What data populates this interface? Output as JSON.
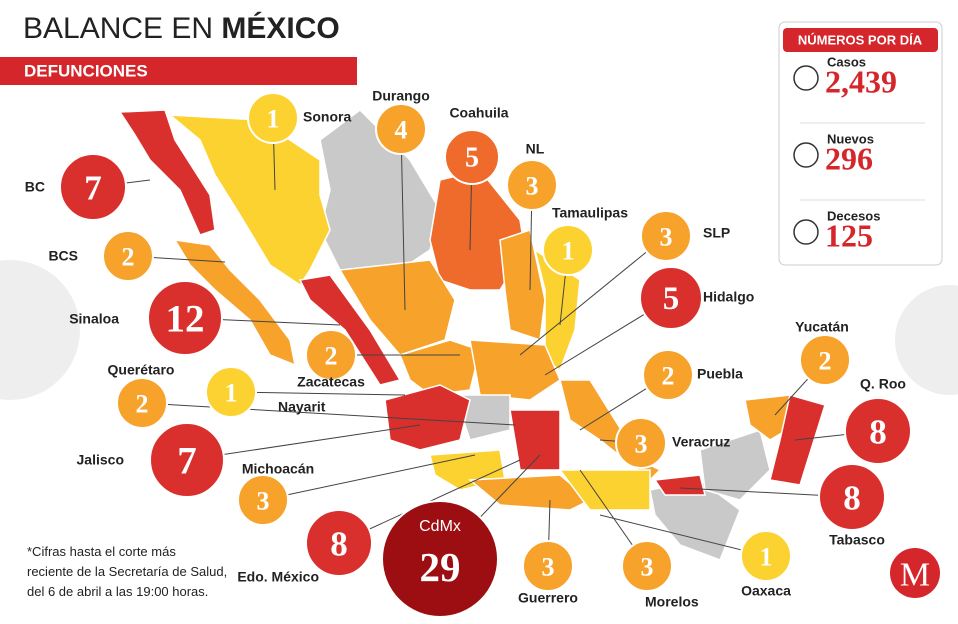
{
  "header": {
    "title_light": "BALANCE EN",
    "title_bold": "MÉXICO",
    "subtitle": "DEFUNCIONES"
  },
  "stats": {
    "title": "NÚMEROS POR DÍA",
    "items": [
      {
        "label": "Casos",
        "value": "2,439"
      },
      {
        "label": "Nuevos",
        "value": "296"
      },
      {
        "label": "Decesos",
        "value": "125"
      }
    ]
  },
  "states": [
    {
      "name": "Sonora",
      "deaths": 1
    },
    {
      "name": "Durango",
      "deaths": 4
    },
    {
      "name": "Coahuila",
      "deaths": 5
    },
    {
      "name": "NL",
      "deaths": 3
    },
    {
      "name": "Tamaulipas",
      "deaths": 1
    },
    {
      "name": "SLP",
      "deaths": 3
    },
    {
      "name": "Hidalgo",
      "deaths": 5
    },
    {
      "name": "BC",
      "deaths": 7
    },
    {
      "name": "BCS",
      "deaths": 2
    },
    {
      "name": "Sinaloa",
      "deaths": 12
    },
    {
      "name": "Zacatecas",
      "deaths": 2
    },
    {
      "name": "Querétaro",
      "deaths": 2
    },
    {
      "name": "Nayarit",
      "deaths": 1
    },
    {
      "name": "Jalisco",
      "deaths": 7
    },
    {
      "name": "Michoacán",
      "deaths": 3
    },
    {
      "name": "Edo. México",
      "deaths": 8
    },
    {
      "name": "CdMx",
      "deaths": 29
    },
    {
      "name": "Guerrero",
      "deaths": 3
    },
    {
      "name": "Morelos",
      "deaths": 3
    },
    {
      "name": "Oaxaca",
      "deaths": 1
    },
    {
      "name": "Puebla",
      "deaths": 2
    },
    {
      "name": "Veracruz",
      "deaths": 3
    },
    {
      "name": "Yucatán",
      "deaths": 2
    },
    {
      "name": "Q. Roo",
      "deaths": 8
    },
    {
      "name": "Tabasco",
      "deaths": 8
    }
  ],
  "note": [
    "*Cifras hasta el corte más",
    "reciente de la Secretaría de Salud,",
    "del 6 de abril a las 19:00 horas."
  ],
  "logo": "M"
}
